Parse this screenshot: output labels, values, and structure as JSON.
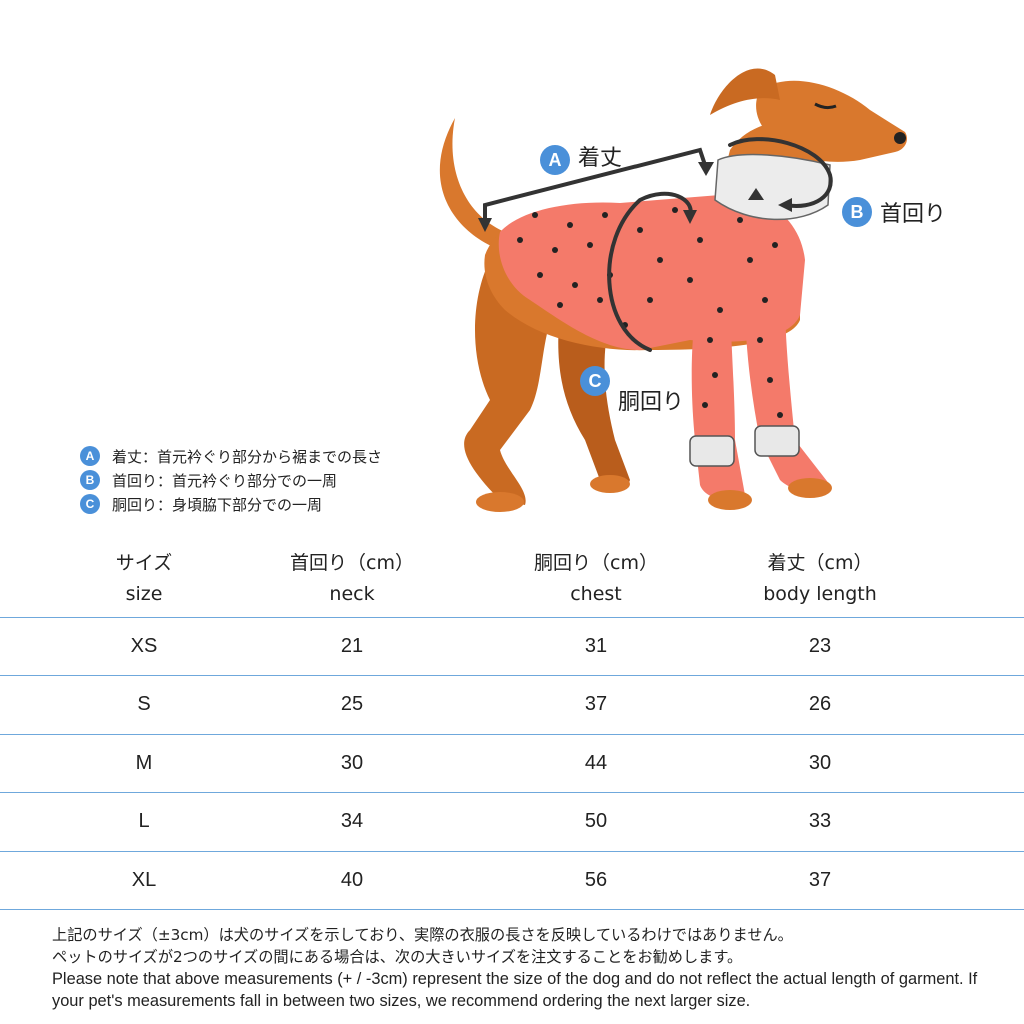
{
  "callouts": {
    "a": {
      "letter": "A",
      "label": "着丈"
    },
    "b": {
      "letter": "B",
      "label": "首回り"
    },
    "c": {
      "letter": "C",
      "label": "胴回り"
    }
  },
  "legend": [
    {
      "letter": "A",
      "text": "着丈：首元衿ぐり部分から裾までの長さ"
    },
    {
      "letter": "B",
      "text": "首回り：首元衿ぐり部分での一周"
    },
    {
      "letter": "C",
      "text": "胴回り：身頃脇下部分での一周"
    }
  ],
  "table": {
    "headers": [
      {
        "jp": "サイズ",
        "en": "size"
      },
      {
        "jp": "首回り（cm）",
        "en": "neck"
      },
      {
        "jp": "胴回り（cm）",
        "en": "chest"
      },
      {
        "jp": "着丈（cm）",
        "en": "body length"
      }
    ],
    "rows": [
      {
        "size": "XS",
        "neck": "21",
        "chest": "31",
        "length": "23"
      },
      {
        "size": "S",
        "neck": "25",
        "chest": "37",
        "length": "26"
      },
      {
        "size": "M",
        "neck": "30",
        "chest": "44",
        "length": "30"
      },
      {
        "size": "L",
        "neck": "34",
        "chest": "50",
        "length": "33"
      },
      {
        "size": "XL",
        "neck": "40",
        "chest": "56",
        "length": "37"
      }
    ]
  },
  "notes": {
    "jp1": "上記のサイズ（±3cm）は犬のサイズを示しており、実際の衣服の長さを反映しているわけではありません。",
    "jp2": "ペットのサイズが2つのサイズの間にある場合は、次の大きいサイズを注文することをお勧めします。",
    "en": "Please note that above measurements (+ / -3cm) represent the size of the dog and do not reflect the actual length of garment. If your pet's measurements fall in between two sizes, we recommend ordering the next larger size."
  },
  "colors": {
    "accent": "#4a90d9",
    "dog": "#d9782d",
    "sweater": "#f47a6a",
    "cuff": "#e8e8e8"
  }
}
